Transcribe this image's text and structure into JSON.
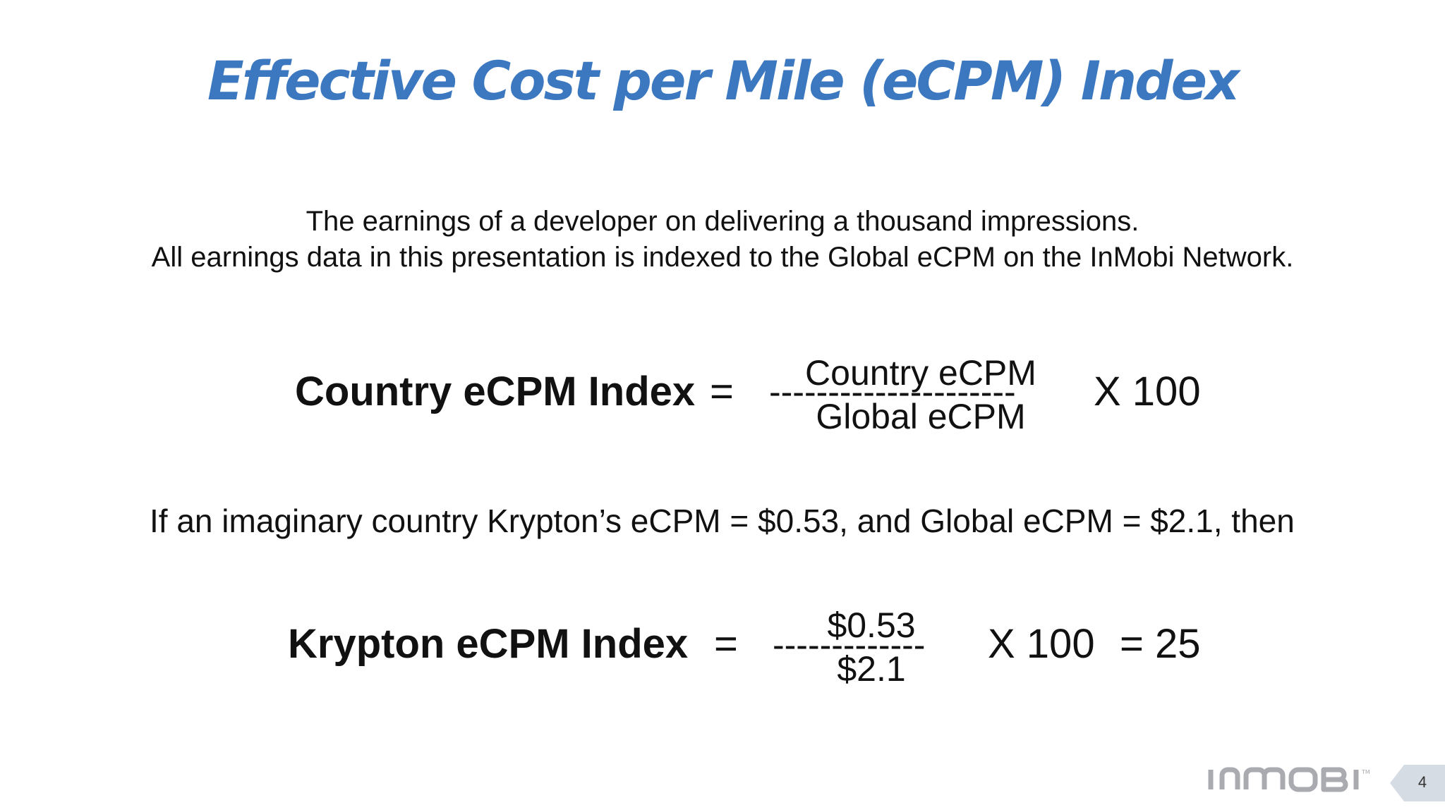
{
  "slide": {
    "title": "Effective Cost per Mile (eCPM) Index",
    "description_line1": "The earnings of a developer on delivering a thousand impressions.",
    "description_line2": "All earnings data in this presentation is indexed to the Global eCPM on the InMobi Network.",
    "formula1": {
      "label": "Country eCPM Index",
      "equals": "=",
      "numerator": "Country eCPM",
      "fraction_bar": "---------------------",
      "denominator": "Global eCPM",
      "multiplier": "X 100"
    },
    "example_text": "If an imaginary country Krypton’s eCPM = $0.53, and Global eCPM = $2.1, then",
    "formula2": {
      "label": "Krypton eCPM Index",
      "equals": "=",
      "numerator": "$0.53",
      "fraction_bar": "-------------",
      "denominator": "$2.1",
      "multiplier": "X 100",
      "result": "= 25"
    },
    "logo_text": "INMOBI",
    "page_number": "4"
  },
  "colors": {
    "title": "#3b78c0",
    "text": "#111111",
    "logo": "#a9abb0",
    "page_tab": "#d5dce3"
  }
}
